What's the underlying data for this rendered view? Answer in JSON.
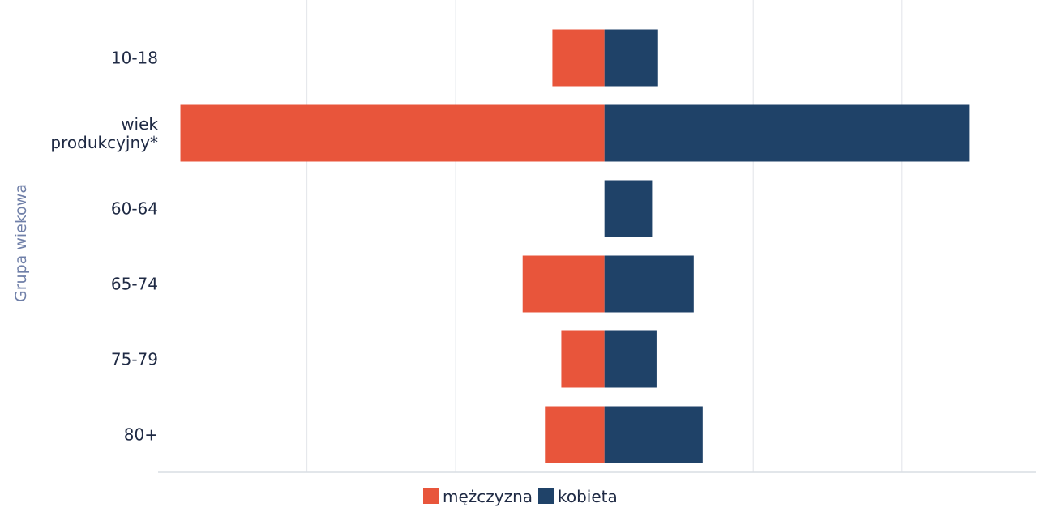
{
  "chart_data": {
    "type": "bar",
    "orientation": "horizontal",
    "stacking": "diverging",
    "ylabel": "Grupa wiekowa",
    "categories": [
      "10-18",
      "wiek produkcyjny*",
      "60-64",
      "65-74",
      "75-79",
      "80+"
    ],
    "series": [
      {
        "name": "mężczyzna",
        "color": "#e8553b",
        "values": [
          -0.35,
          -2.85,
          0,
          -0.55,
          -0.29,
          -0.4
        ]
      },
      {
        "name": "kobieta",
        "color": "#1f4268",
        "values": [
          0.36,
          2.45,
          0.32,
          0.6,
          0.35,
          0.66
        ]
      }
    ],
    "xlim": [
      -3,
      2.9
    ],
    "xticks": [
      -2,
      -1,
      0,
      1,
      2
    ],
    "grid": "vertical",
    "legend": "bottom-center"
  }
}
